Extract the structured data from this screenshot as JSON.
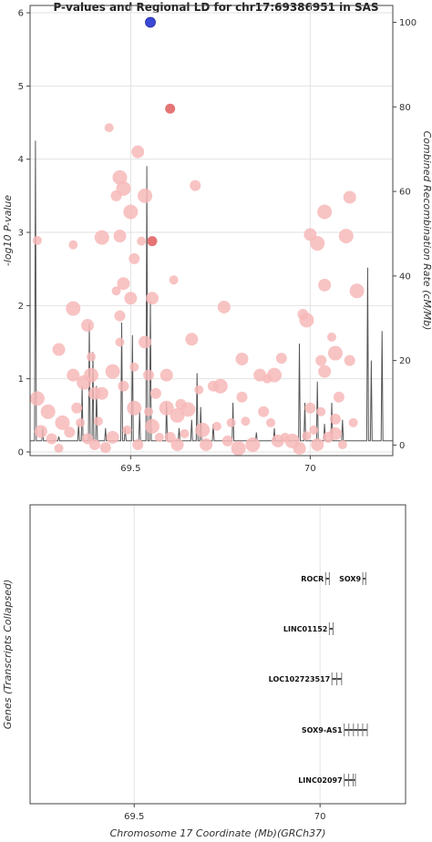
{
  "chart_data": [
    {
      "type": "scatter",
      "title": "P-values and Regional LD for chr17:69386951 in SAS",
      "ylabel": "-log10 P-value",
      "y2label": "Combined Recombination Rate (cM/Mb)",
      "xlim": [
        69.22,
        70.23
      ],
      "ylim": [
        -0.05,
        6.1
      ],
      "y2lim": [
        -2.5,
        104
      ],
      "xticks": [
        69.5,
        70
      ],
      "yticks": [
        0,
        1,
        2,
        3,
        4,
        5,
        6
      ],
      "y2ticks": [
        0,
        20,
        40,
        60,
        80,
        100
      ],
      "grid": true,
      "lead_color": "#3b48d6",
      "point_color": "#f7b9b9",
      "high_ld_color": "#e57474",
      "line_color": "#555555",
      "lead_point": {
        "x": 69.555,
        "y": 5.87
      },
      "high_ld_points": [
        {
          "x": 69.61,
          "y": 4.69
        },
        {
          "x": 69.56,
          "y": 2.88
        }
      ],
      "points": [
        {
          "x": 69.24,
          "y": 2.89
        },
        {
          "x": 69.24,
          "y": 0.73
        },
        {
          "x": 69.25,
          "y": 0.28
        },
        {
          "x": 69.28,
          "y": 0.18
        },
        {
          "x": 69.3,
          "y": 0.05
        },
        {
          "x": 69.31,
          "y": 0.4
        },
        {
          "x": 69.3,
          "y": 1.4
        },
        {
          "x": 69.33,
          "y": 0.27
        },
        {
          "x": 69.34,
          "y": 2.83
        },
        {
          "x": 69.34,
          "y": 1.96
        },
        {
          "x": 69.34,
          "y": 1.05
        },
        {
          "x": 69.35,
          "y": 0.6
        },
        {
          "x": 69.36,
          "y": 0.4
        },
        {
          "x": 69.37,
          "y": 0.95
        },
        {
          "x": 69.38,
          "y": 1.73
        },
        {
          "x": 69.38,
          "y": 0.18
        },
        {
          "x": 69.39,
          "y": 1.3
        },
        {
          "x": 69.39,
          "y": 1.05
        },
        {
          "x": 69.4,
          "y": 0.8
        },
        {
          "x": 69.4,
          "y": 0.1
        },
        {
          "x": 69.41,
          "y": 0.42
        },
        {
          "x": 69.42,
          "y": 2.93
        },
        {
          "x": 69.42,
          "y": 0.8
        },
        {
          "x": 69.43,
          "y": 0.06
        },
        {
          "x": 69.44,
          "y": 4.43
        },
        {
          "x": 69.45,
          "y": 1.1
        },
        {
          "x": 69.45,
          "y": 0.2
        },
        {
          "x": 69.46,
          "y": 3.5
        },
        {
          "x": 69.46,
          "y": 2.2
        },
        {
          "x": 69.47,
          "y": 3.75
        },
        {
          "x": 69.47,
          "y": 2.95
        },
        {
          "x": 69.47,
          "y": 1.86
        },
        {
          "x": 69.47,
          "y": 1.5
        },
        {
          "x": 69.48,
          "y": 3.6
        },
        {
          "x": 69.48,
          "y": 2.3
        },
        {
          "x": 69.48,
          "y": 0.9
        },
        {
          "x": 69.49,
          "y": 0.3
        },
        {
          "x": 69.5,
          "y": 3.28
        },
        {
          "x": 69.5,
          "y": 2.1
        },
        {
          "x": 69.51,
          "y": 2.64
        },
        {
          "x": 69.51,
          "y": 1.16
        },
        {
          "x": 69.51,
          "y": 0.6
        },
        {
          "x": 69.52,
          "y": 4.1
        },
        {
          "x": 69.52,
          "y": 0.1
        },
        {
          "x": 69.53,
          "y": 2.88
        },
        {
          "x": 69.54,
          "y": 3.5
        },
        {
          "x": 69.54,
          "y": 1.5
        },
        {
          "x": 69.55,
          "y": 1.05
        },
        {
          "x": 69.55,
          "y": 0.55
        },
        {
          "x": 69.56,
          "y": 0.35
        },
        {
          "x": 69.56,
          "y": 2.1
        },
        {
          "x": 69.57,
          "y": 0.8
        },
        {
          "x": 69.58,
          "y": 0.2
        },
        {
          "x": 69.6,
          "y": 0.6
        },
        {
          "x": 69.6,
          "y": 1.05
        },
        {
          "x": 69.61,
          "y": 0.2
        },
        {
          "x": 69.62,
          "y": 2.35
        },
        {
          "x": 69.63,
          "y": 0.5
        },
        {
          "x": 69.63,
          "y": 0.1
        },
        {
          "x": 69.64,
          "y": 0.65
        },
        {
          "x": 69.65,
          "y": 0.25
        },
        {
          "x": 69.66,
          "y": 0.58
        },
        {
          "x": 69.67,
          "y": 1.54
        },
        {
          "x": 69.68,
          "y": 3.64
        },
        {
          "x": 69.69,
          "y": 0.85
        },
        {
          "x": 69.7,
          "y": 0.3
        },
        {
          "x": 69.71,
          "y": 0.1
        },
        {
          "x": 69.73,
          "y": 0.9
        },
        {
          "x": 69.74,
          "y": 0.35
        },
        {
          "x": 69.75,
          "y": 0.9
        },
        {
          "x": 69.76,
          "y": 1.98
        },
        {
          "x": 69.77,
          "y": 0.15
        },
        {
          "x": 69.78,
          "y": 0.4
        },
        {
          "x": 69.8,
          "y": 0.05
        },
        {
          "x": 69.81,
          "y": 1.27
        },
        {
          "x": 69.81,
          "y": 0.75
        },
        {
          "x": 69.82,
          "y": 0.42
        },
        {
          "x": 69.84,
          "y": 0.1
        },
        {
          "x": 69.86,
          "y": 1.05
        },
        {
          "x": 69.87,
          "y": 0.55
        },
        {
          "x": 69.89,
          "y": 0.4
        },
        {
          "x": 69.9,
          "y": 1.05
        },
        {
          "x": 69.91,
          "y": 0.15
        },
        {
          "x": 69.92,
          "y": 1.28
        },
        {
          "x": 69.93,
          "y": 0.2
        },
        {
          "x": 69.95,
          "y": 0.15
        },
        {
          "x": 69.97,
          "y": 0.05
        },
        {
          "x": 69.98,
          "y": 1.88
        },
        {
          "x": 69.99,
          "y": 0.22
        },
        {
          "x": 69.99,
          "y": 1.8
        },
        {
          "x": 70.0,
          "y": 2.97
        },
        {
          "x": 70.0,
          "y": 0.6
        },
        {
          "x": 70.01,
          "y": 0.3
        },
        {
          "x": 70.02,
          "y": 2.85
        },
        {
          "x": 70.02,
          "y": 0.1
        },
        {
          "x": 70.03,
          "y": 1.25
        },
        {
          "x": 70.03,
          "y": 0.55
        },
        {
          "x": 70.04,
          "y": 3.28
        },
        {
          "x": 70.04,
          "y": 2.28
        },
        {
          "x": 70.05,
          "y": 0.2
        },
        {
          "x": 70.06,
          "y": 1.57
        },
        {
          "x": 70.07,
          "y": 1.35
        },
        {
          "x": 70.07,
          "y": 0.25
        },
        {
          "x": 70.08,
          "y": 0.75
        },
        {
          "x": 70.09,
          "y": 0.1
        },
        {
          "x": 70.1,
          "y": 2.95
        },
        {
          "x": 70.11,
          "y": 3.48
        },
        {
          "x": 70.11,
          "y": 1.25
        },
        {
          "x": 70.12,
          "y": 0.4
        },
        {
          "x": 70.13,
          "y": 2.2
        },
        {
          "x": 70.04,
          "y": 1.1
        },
        {
          "x": 70.07,
          "y": 0.45
        },
        {
          "x": 69.88,
          "y": 1.0
        },
        {
          "x": 69.27,
          "y": 0.55
        }
      ],
      "recombination_peaks": [
        {
          "x": 69.235,
          "y": 72
        },
        {
          "x": 69.255,
          "y": 4
        },
        {
          "x": 69.3,
          "y": 2
        },
        {
          "x": 69.355,
          "y": 5
        },
        {
          "x": 69.365,
          "y": 14
        },
        {
          "x": 69.385,
          "y": 29
        },
        {
          "x": 69.395,
          "y": 22
        },
        {
          "x": 69.405,
          "y": 14
        },
        {
          "x": 69.43,
          "y": 4
        },
        {
          "x": 69.475,
          "y": 29
        },
        {
          "x": 69.485,
          "y": 4
        },
        {
          "x": 69.505,
          "y": 26
        },
        {
          "x": 69.525,
          "y": 8
        },
        {
          "x": 69.545,
          "y": 66
        },
        {
          "x": 69.555,
          "y": 34
        },
        {
          "x": 69.6,
          "y": 10
        },
        {
          "x": 69.635,
          "y": 4
        },
        {
          "x": 69.67,
          "y": 6
        },
        {
          "x": 69.685,
          "y": 17
        },
        {
          "x": 69.695,
          "y": 9
        },
        {
          "x": 69.73,
          "y": 5
        },
        {
          "x": 69.785,
          "y": 10
        },
        {
          "x": 69.85,
          "y": 3
        },
        {
          "x": 69.9,
          "y": 4
        },
        {
          "x": 69.97,
          "y": 24
        },
        {
          "x": 69.985,
          "y": 10
        },
        {
          "x": 70.02,
          "y": 15
        },
        {
          "x": 70.04,
          "y": 5
        },
        {
          "x": 70.06,
          "y": 10
        },
        {
          "x": 70.09,
          "y": 6
        },
        {
          "x": 70.16,
          "y": 42
        },
        {
          "x": 70.17,
          "y": 20
        },
        {
          "x": 70.2,
          "y": 27
        }
      ]
    },
    {
      "type": "gene_track",
      "ylabel": "Genes (Transcripts Collapsed)",
      "xlabel": "Chromosome 17 Coordinate (Mb)(GRCh37)",
      "xlim": [
        69.22,
        70.23
      ],
      "xticks": [
        69.5,
        70
      ],
      "genes": [
        {
          "name": "ROCR",
          "start": 70.015,
          "end": 70.025,
          "row": 0
        },
        {
          "name": "SOX9",
          "start": 70.115,
          "end": 70.123,
          "row": 0
        },
        {
          "name": "LINC01152",
          "start": 70.025,
          "end": 70.035,
          "row": 1
        },
        {
          "name": "LOC102723517",
          "start": 70.032,
          "end": 70.058,
          "row": 2
        },
        {
          "name": "SOX9-AS1",
          "start": 70.065,
          "end": 70.127,
          "row": 3
        },
        {
          "name": "LINC02097",
          "start": 70.065,
          "end": 70.095,
          "row": 4
        }
      ]
    }
  ]
}
